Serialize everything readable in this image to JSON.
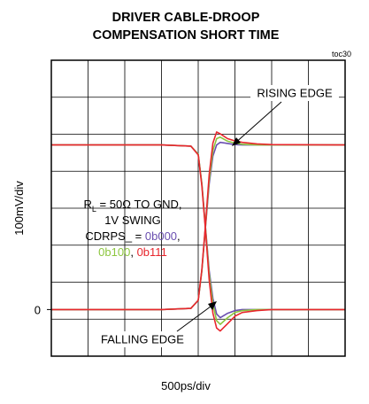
{
  "chart_data": {
    "type": "line",
    "title": [
      "DRIVER CABLE-DROOP",
      "COMPENSATION SHORT TIME"
    ],
    "figure_id": "toc30",
    "x_label": "500ps/div",
    "y_label": "100mV/div",
    "xlim": [
      0,
      4000
    ],
    "ylim": [
      -126,
      674
    ],
    "yticks": [
      0
    ],
    "grid": true,
    "x": [
      0,
      1500,
      1900,
      2000,
      2050,
      2100,
      2150,
      2200,
      2250,
      2300,
      2400,
      2500,
      2600,
      2800,
      3000,
      4000
    ],
    "series": [
      {
        "name": "0b000",
        "color": "#6a4fb0",
        "rising": [
          0,
          0,
          3,
          25,
          105,
          225,
          340,
          415,
          445,
          452,
          449,
          446,
          445,
          445,
          445,
          445
        ],
        "falling": [
          445,
          445,
          442,
          420,
          340,
          220,
          105,
          30,
          -12,
          -22,
          -10,
          -3,
          0,
          0,
          0,
          0
        ]
      },
      {
        "name": "0b100",
        "color": "#8dc63f",
        "rising": [
          0,
          0,
          3,
          25,
          105,
          228,
          350,
          430,
          462,
          466,
          455,
          450,
          447,
          445,
          445,
          445
        ],
        "falling": [
          445,
          445,
          442,
          420,
          340,
          218,
          95,
          15,
          -30,
          -40,
          -22,
          -8,
          -3,
          0,
          0,
          0
        ]
      },
      {
        "name": "0b111",
        "color": "#e8262d",
        "rising": [
          0,
          0,
          3,
          25,
          108,
          232,
          365,
          450,
          480,
          475,
          462,
          456,
          452,
          448,
          446,
          445
        ],
        "falling": [
          445,
          445,
          442,
          418,
          335,
          212,
          80,
          -10,
          -50,
          -58,
          -38,
          -18,
          -8,
          -3,
          0,
          0
        ]
      }
    ],
    "annotations": {
      "rising": "RISING EDGE",
      "falling": "FALLING EDGE"
    },
    "condition": {
      "symbol": "R",
      "subscript": "L",
      "text": " = 50Ω TO GND,",
      "line2": "1V SWING"
    },
    "legend_prefix": "CDRPS_ = ",
    "legend_separator": ","
  }
}
